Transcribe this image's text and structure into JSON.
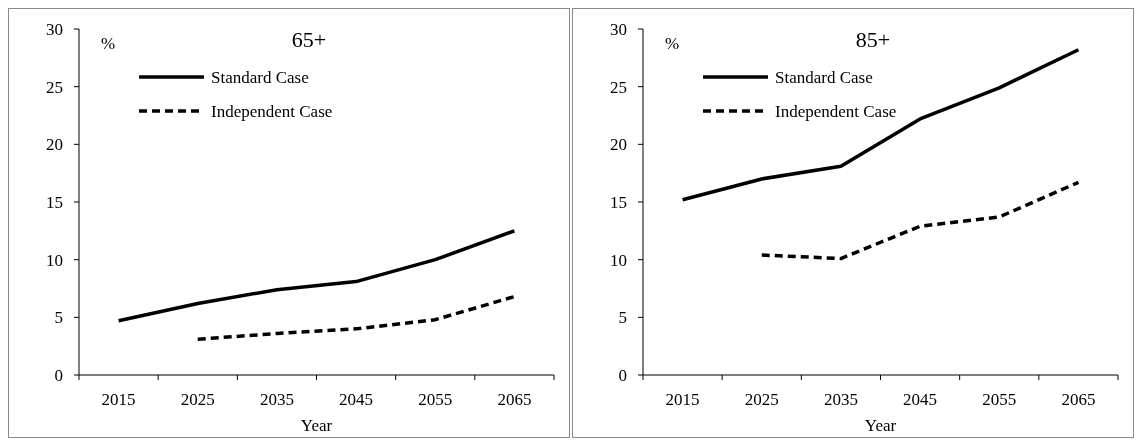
{
  "chart_data": [
    {
      "type": "line",
      "title": "65+",
      "xlabel": "Year",
      "ylabel": "%",
      "categories": [
        "2015",
        "2025",
        "2035",
        "2045",
        "2055",
        "2065"
      ],
      "ylim": [
        0,
        30
      ],
      "yticks": [
        0,
        5,
        10,
        15,
        20,
        25,
        30
      ],
      "legend": "top left",
      "grid": false,
      "series": [
        {
          "name": "Standard Case",
          "color": "#000000",
          "line_style": "solid",
          "values": [
            4.7,
            6.2,
            7.4,
            8.1,
            10.0,
            12.5
          ]
        },
        {
          "name": "Independent Case",
          "color": "#000000",
          "line_style": "dashed",
          "values": [
            null,
            3.1,
            3.6,
            4.0,
            4.8,
            6.8
          ]
        }
      ]
    },
    {
      "type": "line",
      "title": "85+",
      "xlabel": "Year",
      "ylabel": "%",
      "categories": [
        "2015",
        "2025",
        "2035",
        "2045",
        "2055",
        "2065"
      ],
      "ylim": [
        0,
        30
      ],
      "yticks": [
        0,
        5,
        10,
        15,
        20,
        25,
        30
      ],
      "legend": "top left",
      "grid": false,
      "series": [
        {
          "name": "Standard Case",
          "color": "#000000",
          "line_style": "solid",
          "values": [
            15.2,
            17.0,
            18.1,
            22.2,
            24.9,
            28.2
          ]
        },
        {
          "name": "Independent Case",
          "color": "#000000",
          "line_style": "dashed",
          "values": [
            null,
            10.4,
            10.1,
            12.9,
            13.7,
            16.7
          ]
        }
      ]
    }
  ]
}
